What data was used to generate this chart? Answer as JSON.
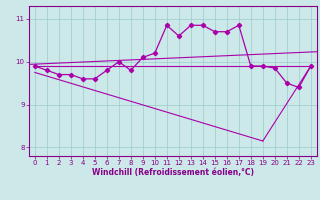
{
  "hours": [
    0,
    1,
    2,
    3,
    4,
    5,
    6,
    7,
    8,
    9,
    10,
    11,
    12,
    13,
    14,
    15,
    16,
    17,
    18,
    19,
    20,
    21,
    22,
    23
  ],
  "windchill": [
    9.9,
    9.8,
    9.7,
    9.7,
    9.6,
    9.6,
    9.8,
    10.0,
    9.8,
    10.1,
    10.2,
    10.85,
    10.6,
    10.85,
    10.85,
    10.7,
    10.7,
    10.85,
    9.9,
    9.9,
    9.85,
    9.5,
    9.4,
    9.9
  ],
  "line_color": "#aa00aa",
  "bg_color": "#cce8e8",
  "grid_color": "#99cccc",
  "axis_color": "#880088",
  "xlabel": "Windchill (Refroidissement éolien,°C)",
  "xlim": [
    -0.5,
    23.5
  ],
  "ylim": [
    7.8,
    11.3
  ],
  "yticks": [
    8,
    9,
    10,
    11
  ],
  "xticks": [
    0,
    1,
    2,
    3,
    4,
    5,
    6,
    7,
    8,
    9,
    10,
    11,
    12,
    13,
    14,
    15,
    16,
    17,
    18,
    19,
    20,
    21,
    22,
    23
  ],
  "flat_line": [
    [
      0,
      23
    ],
    [
      9.9,
      9.9
    ]
  ],
  "tri_line1": [
    [
      0,
      19
    ],
    [
      9.75,
      8.15
    ]
  ],
  "tri_line2": [
    [
      19,
      23
    ],
    [
      8.15,
      9.9
    ]
  ]
}
